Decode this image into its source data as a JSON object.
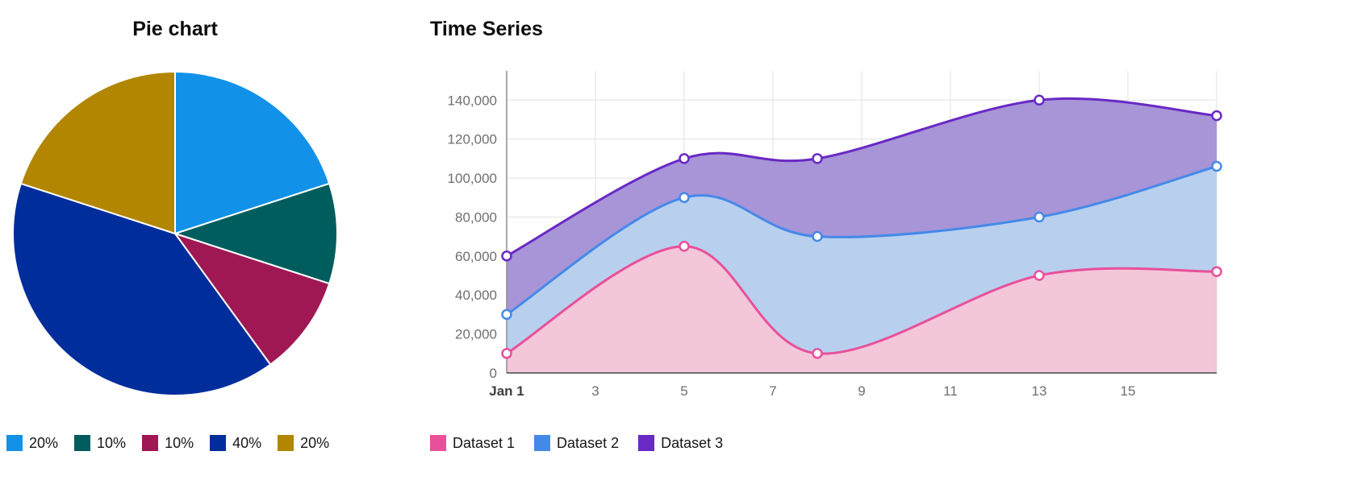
{
  "chart_data": [
    {
      "type": "pie",
      "title": "Pie chart",
      "direction": "clockwise",
      "start_angle_deg": 0,
      "legend_position": "bottom",
      "slices": [
        {
          "label": "20%",
          "value": 20,
          "color": "#1192e8"
        },
        {
          "label": "10%",
          "value": 10,
          "color": "#005d5d"
        },
        {
          "label": "10%",
          "value": 10,
          "color": "#9f1853"
        },
        {
          "label": "40%",
          "value": 40,
          "color": "#002d9c"
        },
        {
          "label": "20%",
          "value": 20,
          "color": "#b28600"
        }
      ]
    },
    {
      "type": "area",
      "title": "Time Series",
      "x": [
        1,
        5,
        8,
        13,
        17
      ],
      "series": [
        {
          "name": "Dataset 1",
          "values": [
            10000,
            65000,
            10000,
            50000,
            52000
          ],
          "line_color": "#e8509a",
          "fill_color": "#f3c6d9"
        },
        {
          "name": "Dataset 2",
          "values": [
            30000,
            90000,
            70000,
            80000,
            106000
          ],
          "line_color": "#4589e8",
          "fill_color": "#b8d0ee"
        },
        {
          "name": "Dataset 3",
          "values": [
            60000,
            110000,
            110000,
            140000,
            132000
          ],
          "line_color": "#6929c4",
          "fill_color": "#a795d8"
        }
      ],
      "x_ticks": [
        {
          "value": 1,
          "label": "Jan 1",
          "bold": true
        },
        {
          "value": 3,
          "label": "3"
        },
        {
          "value": 5,
          "label": "5"
        },
        {
          "value": 7,
          "label": "7"
        },
        {
          "value": 9,
          "label": "9"
        },
        {
          "value": 11,
          "label": "11"
        },
        {
          "value": 13,
          "label": "13"
        },
        {
          "value": 15,
          "label": "15"
        }
      ],
      "y_ticks": [
        {
          "value": 0,
          "label": "0"
        },
        {
          "value": 20000,
          "label": "20,000"
        },
        {
          "value": 40000,
          "label": "40,000"
        },
        {
          "value": 60000,
          "label": "60,000"
        },
        {
          "value": 80000,
          "label": "80,000"
        },
        {
          "value": 100000,
          "label": "100,000"
        },
        {
          "value": 120000,
          "label": "120,000"
        },
        {
          "value": 140000,
          "label": "140,000"
        }
      ],
      "xlim": [
        1,
        17
      ],
      "ylim": [
        0,
        155000
      ],
      "grid": true,
      "legend_position": "bottom"
    }
  ]
}
